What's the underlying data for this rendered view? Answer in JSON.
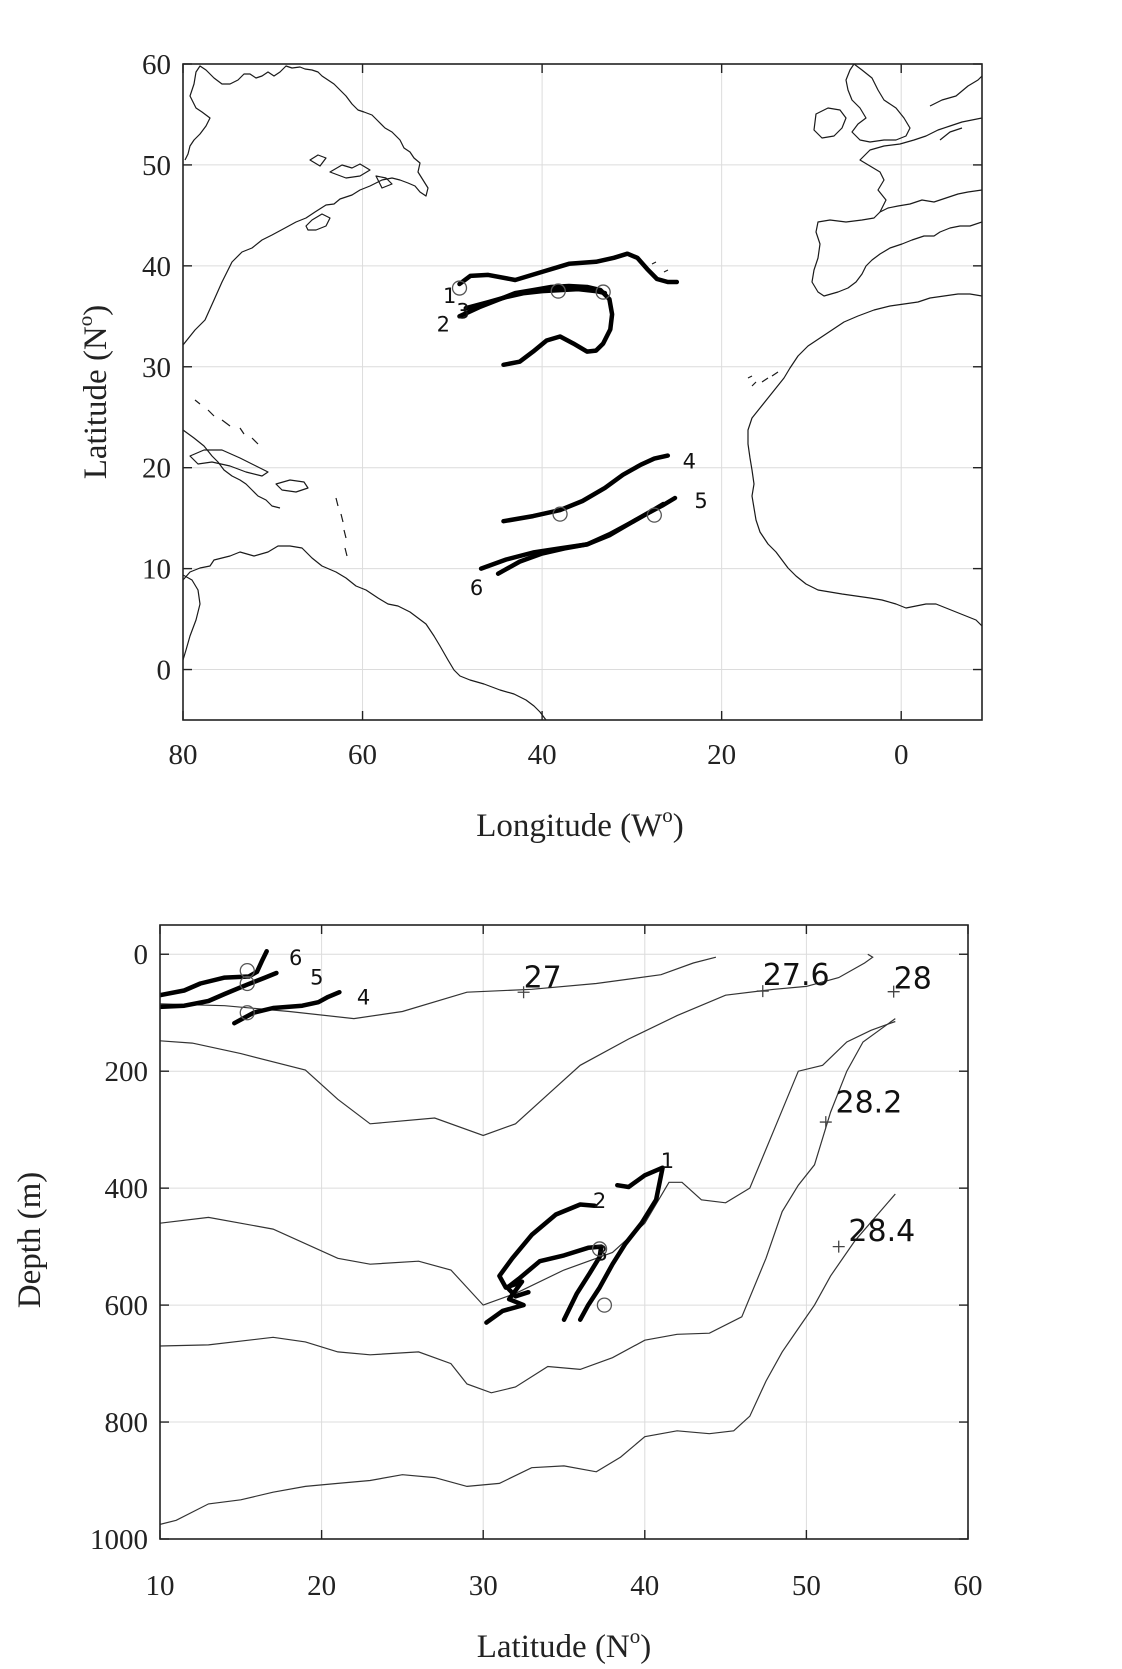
{
  "chart_data": [
    {
      "type": "line",
      "panel": "map",
      "xlabel": "Longitude (W",
      "xlabel_sup": "o",
      "xlabel_close": ")",
      "ylabel": "Latitude (N",
      "ylabel_sup": "o",
      "ylabel_close": ")",
      "xlim": [
        80,
        -9
      ],
      "ylim": [
        -5,
        60
      ],
      "xticks": [
        "80",
        "60",
        "40",
        "20",
        "0"
      ],
      "xtick_values": [
        80,
        60,
        40,
        20,
        0
      ],
      "yticks": [
        "60",
        "50",
        "40",
        "30",
        "20",
        "10",
        "0"
      ],
      "ytick_values": [
        60,
        50,
        40,
        30,
        20,
        10,
        0
      ],
      "grid": true,
      "series": [
        {
          "label": "1",
          "label_at": [
            50.3,
            37.1
          ],
          "x": [
            49.2,
            48,
            46,
            43,
            40,
            37,
            34,
            32,
            30.5,
            29.4,
            28.3,
            27.2,
            26,
            25
          ],
          "y": [
            38.2,
            39.0,
            39.1,
            38.6,
            39.4,
            40.2,
            40.4,
            40.8,
            41.2,
            40.8,
            39.7,
            38.7,
            38.4,
            38.4
          ]
        },
        {
          "label": "2",
          "label_at": [
            51.0,
            34.3
          ],
          "x": [
            49.2,
            47,
            45,
            43,
            41,
            39,
            37,
            35,
            33.5,
            32.5,
            32.2,
            32.4,
            33.2,
            34,
            35,
            36.5,
            38,
            39.5,
            41,
            42.5,
            44.3
          ],
          "y": [
            35.0,
            35.9,
            36.6,
            37.3,
            37.6,
            37.9,
            38.0,
            37.9,
            37.6,
            36.7,
            35.2,
            33.7,
            32.3,
            31.6,
            31.5,
            32.3,
            33.0,
            32.6,
            31.5,
            30.5,
            30.2
          ]
        },
        {
          "label": "3",
          "label_at": [
            48.8,
            35.6
          ],
          "x": [
            48.5,
            46,
            44,
            42,
            40,
            38,
            36,
            34,
            33
          ],
          "y": [
            35.8,
            36.4,
            36.9,
            37.3,
            37.5,
            37.6,
            37.7,
            37.5,
            37.3
          ]
        },
        {
          "label": "4",
          "label_at": [
            23.6,
            20.7
          ],
          "x": [
            44.3,
            41,
            38,
            35.5,
            33,
            31,
            29,
            27.5,
            26.0
          ],
          "y": [
            14.7,
            15.2,
            15.8,
            16.7,
            18.0,
            19.3,
            20.3,
            20.9,
            21.2
          ]
        },
        {
          "label": "5",
          "label_at": [
            22.3,
            16.8
          ],
          "x": [
            46.8,
            44,
            41,
            38,
            35,
            32.5,
            30,
            28,
            26.5,
            25.2
          ],
          "y": [
            10.0,
            10.9,
            11.6,
            12.0,
            12.4,
            13.3,
            14.6,
            15.6,
            16.3,
            17.0
          ]
        },
        {
          "label": "6",
          "label_at": [
            47.3,
            8.2
          ],
          "x": [
            44.9,
            42.5,
            40,
            37.5,
            35,
            32.5,
            30,
            28,
            26.5
          ],
          "y": [
            9.5,
            10.7,
            11.5,
            12.0,
            12.4,
            13.4,
            14.6,
            15.6,
            16.4
          ]
        }
      ],
      "markers": [
        [
          49.2,
          37.8
        ],
        [
          38.2,
          37.5
        ],
        [
          33.2,
          37.4
        ],
        [
          38.0,
          15.4
        ],
        [
          27.5,
          15.3
        ]
      ]
    },
    {
      "type": "line",
      "panel": "section",
      "xlabel": "Latitude (N",
      "xlabel_sup": "o",
      "xlabel_close": ")",
      "ylabel": "Depth (m)",
      "xlim": [
        10,
        60
      ],
      "ylim": [
        1000,
        -50
      ],
      "xticks": [
        "10",
        "20",
        "30",
        "40",
        "50",
        "60"
      ],
      "xtick_values": [
        10,
        20,
        30,
        40,
        50,
        60
      ],
      "yticks": [
        "0",
        "200",
        "400",
        "600",
        "800",
        "1000"
      ],
      "ytick_values": [
        0,
        200,
        400,
        600,
        800,
        1000
      ],
      "grid": true,
      "isopycnals": [
        {
          "label": "27",
          "label_at": [
            32.5,
            36
          ],
          "mark": [
            32.5,
            65
          ],
          "x": [
            10,
            14,
            18,
            22,
            25,
            29,
            33,
            37,
            41,
            43,
            44.4
          ],
          "y": [
            85,
            88,
            98,
            110,
            98,
            65,
            60,
            50,
            35,
            15,
            5
          ]
        },
        {
          "label": "27.6",
          "label_at": [
            47.3,
            32
          ],
          "mark": [
            47.3,
            63
          ],
          "x": [
            10,
            12,
            15,
            19,
            21,
            23,
            27,
            30,
            32,
            34,
            36,
            39,
            42,
            45,
            48,
            50,
            52,
            53.6,
            54.1,
            53.8
          ],
          "y": [
            148,
            152,
            170,
            198,
            248,
            290,
            280,
            310,
            290,
            240,
            190,
            145,
            105,
            70,
            60,
            55,
            40,
            15,
            5,
            0
          ]
        },
        {
          "label": "28",
          "label_at": [
            55.4,
            38
          ],
          "mark": [
            55.4,
            64
          ],
          "x": [
            10,
            13,
            17,
            21,
            23,
            26,
            28,
            30,
            32,
            35,
            38,
            40,
            41.5,
            42.3,
            43.5,
            45,
            46.5,
            48,
            49.5,
            51,
            52.5,
            54,
            55.5
          ],
          "y": [
            460,
            450,
            470,
            520,
            530,
            525,
            540,
            600,
            580,
            540,
            510,
            460,
            390,
            390,
            420,
            425,
            400,
            300,
            200,
            190,
            150,
            130,
            115
          ]
        },
        {
          "label": "28.2",
          "label_at": [
            51.8,
            250
          ],
          "mark": [
            51.2,
            287
          ],
          "x": [
            10,
            13,
            17,
            19,
            21,
            23,
            26,
            28,
            29,
            30.5,
            32,
            34,
            36,
            38,
            40,
            42,
            44,
            46,
            47.5,
            48.5,
            49.5,
            50.5,
            51.5,
            52.5,
            53.5,
            55.5
          ],
          "y": [
            670,
            668,
            655,
            663,
            680,
            685,
            680,
            700,
            735,
            750,
            740,
            705,
            710,
            690,
            660,
            650,
            648,
            620,
            520,
            440,
            395,
            360,
            270,
            200,
            150,
            110
          ]
        },
        {
          "label": "28.4",
          "label_at": [
            52.6,
            470
          ],
          "mark": [
            52.0,
            500
          ],
          "x": [
            10,
            11,
            13,
            15,
            17,
            19,
            21,
            23,
            25,
            27,
            29,
            31,
            33,
            35,
            37,
            38.5,
            40,
            42,
            44,
            45.5,
            46.5,
            47.5,
            48.5,
            49.5,
            50.5,
            51.5,
            53,
            55.5
          ],
          "y": [
            975,
            968,
            940,
            933,
            920,
            910,
            905,
            900,
            890,
            895,
            910,
            905,
            878,
            875,
            885,
            860,
            825,
            815,
            820,
            815,
            790,
            730,
            680,
            640,
            600,
            550,
            490,
            410
          ]
        }
      ],
      "series": [
        {
          "label": "1",
          "label_at": [
            41.4,
            352
          ],
          "x": [
            38.3,
            39,
            40,
            41.1,
            40.7,
            39.8,
            38.8,
            38,
            37.2,
            36.5,
            36
          ],
          "y": [
            395,
            398,
            378,
            365,
            420,
            460,
            495,
            530,
            570,
            600,
            625
          ]
        },
        {
          "label": "2",
          "label_at": [
            37.2,
            420
          ],
          "x": [
            36.9,
            36,
            34.5,
            33,
            31.8,
            31,
            31.4,
            32.4,
            31.6,
            32.5,
            31.2,
            30.2
          ],
          "y": [
            430,
            428,
            445,
            480,
            520,
            550,
            570,
            560,
            590,
            600,
            610,
            630
          ]
        },
        {
          "label": "3",
          "label_at": [
            37.3,
            510
          ],
          "x": [
            35,
            35.8,
            36.6,
            37.2,
            37.3,
            36.5,
            35,
            33.5,
            32.2,
            31.5,
            32.0,
            32.8
          ],
          "y": [
            625,
            580,
            545,
            518,
            500,
            502,
            515,
            525,
            555,
            570,
            585,
            578
          ]
        },
        {
          "label": "4",
          "label_at": [
            22.6,
            72
          ],
          "x": [
            14.6,
            15.8,
            17,
            18.8,
            19.8,
            20.4,
            21.1
          ],
          "y": [
            118,
            100,
            92,
            88,
            82,
            73,
            65
          ]
        },
        {
          "label": "5",
          "label_at": [
            19.7,
            38
          ],
          "x": [
            10,
            11.5,
            13,
            14,
            15.4,
            16.5,
            17.2
          ],
          "y": [
            90,
            88,
            80,
            68,
            52,
            40,
            32
          ]
        },
        {
          "label": "6",
          "label_at": [
            18.4,
            5
          ],
          "x": [
            10,
            11.5,
            12.5,
            14,
            15.5,
            16.0,
            16.3,
            16.6
          ],
          "y": [
            70,
            62,
            50,
            40,
            38,
            30,
            12,
            -5
          ]
        }
      ],
      "markers": [
        [
          15.4,
          28
        ],
        [
          15.4,
          50
        ],
        [
          15.4,
          100
        ],
        [
          37.2,
          504
        ],
        [
          37.5,
          600
        ]
      ]
    }
  ]
}
